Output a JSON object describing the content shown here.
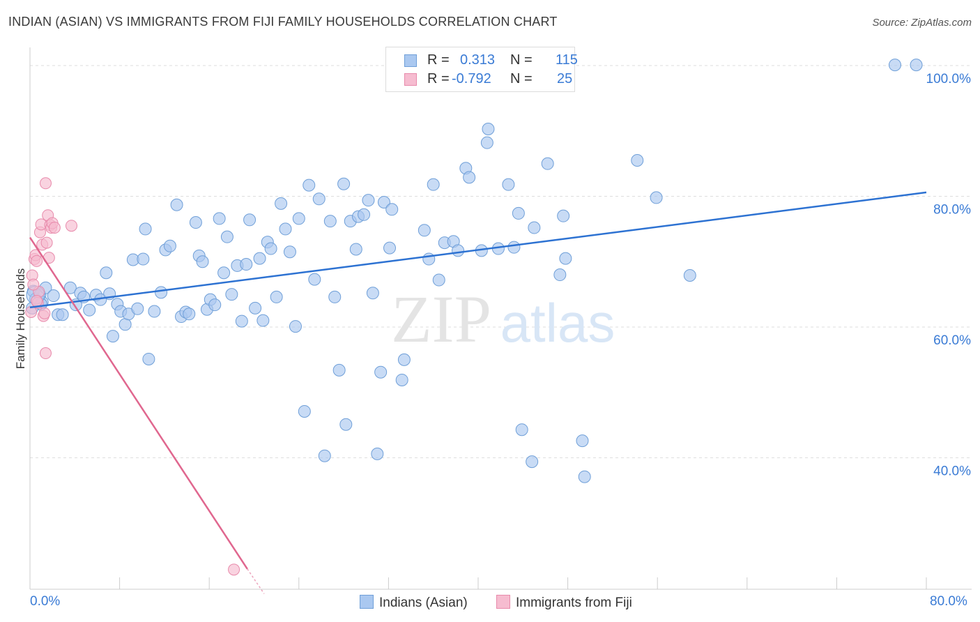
{
  "title": "INDIAN (ASIAN) VS IMMIGRANTS FROM FIJI FAMILY HOUSEHOLDS CORRELATION CHART",
  "source": "Source: ZipAtlas.com",
  "watermark": {
    "zip": "ZIP",
    "atlas": "atlas"
  },
  "colors": {
    "blue_fill": "#aac8f0",
    "blue_stroke": "#6f9fd8",
    "blue_line": "#2d72d2",
    "pink_fill": "#f6bcd0",
    "pink_stroke": "#e88aab",
    "pink_line": "#e0678f",
    "tick_text": "#3a7bd5",
    "grid": "#dddddd"
  },
  "legend": {
    "rows": [
      {
        "r_label": "R =",
        "r_value": "0.313",
        "n_label": "N =",
        "n_value": "115"
      },
      {
        "r_label": "R =",
        "r_value": "-0.792",
        "n_label": "N =",
        "n_value": "25"
      }
    ]
  },
  "bottom_legend": {
    "series1": "Indians (Asian)",
    "series2": "Immigrants from Fiji"
  },
  "x_axis": {
    "min_label": "0.0%",
    "max_label": "80.0%"
  },
  "chart_data": {
    "type": "scatter",
    "title": "INDIAN (ASIAN) VS IMMIGRANTS FROM FIJI FAMILY HOUSEHOLDS CORRELATION CHART",
    "xlabel": "",
    "ylabel": "Family Households",
    "xlim": [
      0,
      80
    ],
    "ylim": [
      20,
      102
    ],
    "y_ticks": [
      40,
      60,
      80,
      100
    ],
    "y_tick_labels": [
      "40.0%",
      "60.0%",
      "80.0%",
      "100.0%"
    ],
    "x_tick_labels": [
      "0.0%",
      "80.0%"
    ],
    "grid": true,
    "legend_position": "top-center",
    "series": [
      {
        "name": "Indians (Asian)",
        "stats": {
          "R": 0.313,
          "N": 115
        },
        "trend": {
          "x": [
            0,
            80
          ],
          "y": [
            63.0,
            80.6
          ]
        },
        "points": [
          [
            0.3,
            65.5
          ],
          [
            0.5,
            64.3
          ],
          [
            0.9,
            64.9
          ],
          [
            1.1,
            63.8
          ],
          [
            1.4,
            66.0
          ],
          [
            2.1,
            64.8
          ],
          [
            2.5,
            61.9
          ],
          [
            2.9,
            61.9
          ],
          [
            3.6,
            66.0
          ],
          [
            4.1,
            63.4
          ],
          [
            4.5,
            65.2
          ],
          [
            4.8,
            64.6
          ],
          [
            5.3,
            62.6
          ],
          [
            5.9,
            64.9
          ],
          [
            6.3,
            64.2
          ],
          [
            6.8,
            68.3
          ],
          [
            7.1,
            65.1
          ],
          [
            7.4,
            58.6
          ],
          [
            7.8,
            63.5
          ],
          [
            8.1,
            62.4
          ],
          [
            8.5,
            60.4
          ],
          [
            8.8,
            62.0
          ],
          [
            9.2,
            70.3
          ],
          [
            9.6,
            62.8
          ],
          [
            10.1,
            70.4
          ],
          [
            10.3,
            75.0
          ],
          [
            10.6,
            55.1
          ],
          [
            11.1,
            62.4
          ],
          [
            11.7,
            65.3
          ],
          [
            12.1,
            71.8
          ],
          [
            12.5,
            72.4
          ],
          [
            13.1,
            78.7
          ],
          [
            13.5,
            61.6
          ],
          [
            13.9,
            62.3
          ],
          [
            14.2,
            62.0
          ],
          [
            14.8,
            76.0
          ],
          [
            15.1,
            70.9
          ],
          [
            15.4,
            70.0
          ],
          [
            15.8,
            62.7
          ],
          [
            16.1,
            64.2
          ],
          [
            16.5,
            63.4
          ],
          [
            16.9,
            76.6
          ],
          [
            17.3,
            68.3
          ],
          [
            17.6,
            73.8
          ],
          [
            18.0,
            65.0
          ],
          [
            18.5,
            69.4
          ],
          [
            18.9,
            60.9
          ],
          [
            19.3,
            69.6
          ],
          [
            19.6,
            76.4
          ],
          [
            20.1,
            62.9
          ],
          [
            20.5,
            70.5
          ],
          [
            20.8,
            61.0
          ],
          [
            21.2,
            73.0
          ],
          [
            21.5,
            72.0
          ],
          [
            22.0,
            64.6
          ],
          [
            22.4,
            78.9
          ],
          [
            22.8,
            75.0
          ],
          [
            23.2,
            71.5
          ],
          [
            23.7,
            60.1
          ],
          [
            24.0,
            76.6
          ],
          [
            24.5,
            47.1
          ],
          [
            24.9,
            81.7
          ],
          [
            25.4,
            67.3
          ],
          [
            25.8,
            79.6
          ],
          [
            26.3,
            40.3
          ],
          [
            26.8,
            76.2
          ],
          [
            27.2,
            64.6
          ],
          [
            27.6,
            53.4
          ],
          [
            28.0,
            81.9
          ],
          [
            28.2,
            45.1
          ],
          [
            28.6,
            76.2
          ],
          [
            29.1,
            71.9
          ],
          [
            29.3,
            76.9
          ],
          [
            29.8,
            77.2
          ],
          [
            30.2,
            79.4
          ],
          [
            30.6,
            65.2
          ],
          [
            31.0,
            40.6
          ],
          [
            31.3,
            53.1
          ],
          [
            31.6,
            79.1
          ],
          [
            32.1,
            72.1
          ],
          [
            32.3,
            78.0
          ],
          [
            33.2,
            51.9
          ],
          [
            33.4,
            55.0
          ],
          [
            35.2,
            74.8
          ],
          [
            35.6,
            70.4
          ],
          [
            36.0,
            81.8
          ],
          [
            36.5,
            67.2
          ],
          [
            37.0,
            72.9
          ],
          [
            37.8,
            73.1
          ],
          [
            38.2,
            71.7
          ],
          [
            38.9,
            84.3
          ],
          [
            39.2,
            82.9
          ],
          [
            40.3,
            71.7
          ],
          [
            40.8,
            88.2
          ],
          [
            40.9,
            90.3
          ],
          [
            41.8,
            72.0
          ],
          [
            42.7,
            81.8
          ],
          [
            43.2,
            72.2
          ],
          [
            43.6,
            77.4
          ],
          [
            43.9,
            44.3
          ],
          [
            44.8,
            39.4
          ],
          [
            45.0,
            75.2
          ],
          [
            46.2,
            85.0
          ],
          [
            47.3,
            68.0
          ],
          [
            47.6,
            77.0
          ],
          [
            47.8,
            70.5
          ],
          [
            49.3,
            42.6
          ],
          [
            49.5,
            37.1
          ],
          [
            54.2,
            85.5
          ],
          [
            55.9,
            79.8
          ],
          [
            58.9,
            67.9
          ],
          [
            77.2,
            100.1
          ],
          [
            79.1,
            100.1
          ],
          [
            0.2,
            62.9
          ],
          [
            1.0,
            63.5
          ]
        ]
      },
      {
        "name": "Immigrants from Fiji",
        "stats": {
          "R": -0.792,
          "N": 25
        },
        "trend": {
          "x": [
            0,
            19.4
          ],
          "y": [
            73.7,
            23.0
          ],
          "dash_extension_to_x": 20.9,
          "dash_extension_to_y": 19.2
        },
        "points": [
          [
            0.1,
            62.3
          ],
          [
            0.2,
            67.9
          ],
          [
            0.4,
            70.4
          ],
          [
            0.5,
            71.0
          ],
          [
            0.6,
            70.1
          ],
          [
            0.7,
            63.7
          ],
          [
            0.8,
            65.4
          ],
          [
            0.9,
            74.5
          ],
          [
            1.0,
            75.7
          ],
          [
            1.1,
            72.6
          ],
          [
            1.2,
            61.7
          ],
          [
            1.3,
            62.1
          ],
          [
            1.4,
            56.0
          ],
          [
            1.4,
            82.0
          ],
          [
            1.5,
            72.9
          ],
          [
            1.6,
            77.1
          ],
          [
            1.7,
            70.6
          ],
          [
            1.8,
            75.6
          ],
          [
            1.9,
            75.2
          ],
          [
            2.0,
            75.9
          ],
          [
            2.2,
            75.2
          ],
          [
            3.7,
            75.5
          ],
          [
            0.3,
            66.5
          ],
          [
            0.6,
            64.0
          ],
          [
            18.2,
            22.9
          ]
        ]
      }
    ]
  }
}
